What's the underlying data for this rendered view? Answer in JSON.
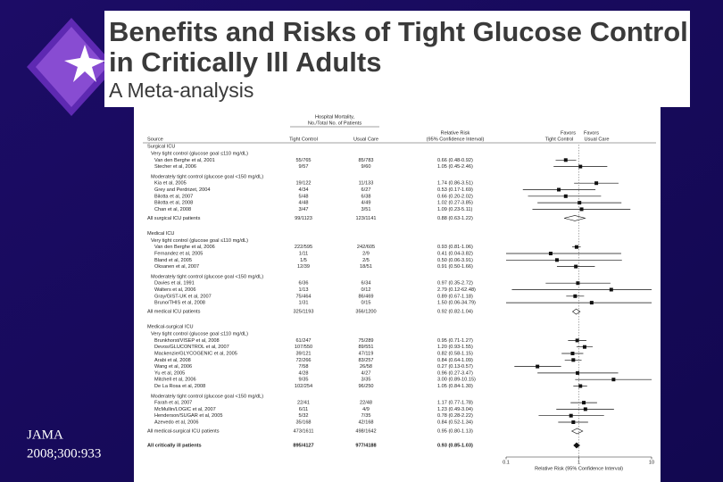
{
  "slide": {
    "title_lines": [
      "Benefits and Risks of Tight Glucose Control",
      "in Critically Ill Adults"
    ],
    "subtitle": "A Meta-analysis",
    "citation": [
      "JAMA",
      "2008;300:933"
    ]
  },
  "chart_data": {
    "type": "forest",
    "columns": {
      "source": "Source",
      "mortality": [
        "Hospital Mortality,",
        "No./Total No. of Patients"
      ],
      "tight": "Tight Control",
      "usual": "Usual Care",
      "rr": [
        "Relative Risk",
        "(95% Confidence Interval)"
      ],
      "favors_tight": [
        "Favors",
        "Tight Control"
      ],
      "favors_usual": [
        "Favors",
        "Usual Care"
      ]
    },
    "x_label": "Relative Risk (95% Confidence Interval)",
    "xlim": [
      0.1,
      10
    ],
    "xticks": [
      0.1,
      1,
      10
    ],
    "log_scale": true,
    "color": "#111111",
    "groups": [
      {
        "name": "Surgical ICU",
        "subgroups": [
          {
            "name": "Very tight control (glucose goal ≤110 mg/dL)",
            "studies": [
              {
                "source": "Van den Berghe et al, 2001",
                "tight": "55/765",
                "usual": "85/783",
                "rr_label": "0.66 (0.48-0.92)",
                "rr": 0.66,
                "ci": [
                  0.48,
                  0.92
                ]
              },
              {
                "source": "Stecher et al, 2006",
                "tight": "9/57",
                "usual": "9/60",
                "rr_label": "1.05 (0.45-2.46)",
                "rr": 1.05,
                "ci": [
                  0.45,
                  2.46
                ]
              }
            ]
          },
          {
            "name": "Moderately tight control (glucose goal <150 mg/dL)",
            "studies": [
              {
                "source": "Kia et al, 2005",
                "tight": "19/122",
                "usual": "11/133",
                "rr_label": "1.74 (0.86-3.51)",
                "rr": 1.74,
                "ci": [
                  0.86,
                  3.51
                ]
              },
              {
                "source": "Grey and Perdrizet, 2004",
                "tight": "4/34",
                "usual": "6/27",
                "rr_label": "0.53 (0.17-1.69)",
                "rr": 0.53,
                "ci": [
                  0.17,
                  1.69
                ]
              },
              {
                "source": "Bilotta et al, 2007",
                "tight": "5/48",
                "usual": "6/38",
                "rr_label": "0.66 (0.20-2.02)",
                "rr": 0.66,
                "ci": [
                  0.2,
                  2.02
                ]
              },
              {
                "source": "Bilotta et al, 2008",
                "tight": "4/48",
                "usual": "4/49",
                "rr_label": "1.02 (0.27-3.85)",
                "rr": 1.02,
                "ci": [
                  0.27,
                  3.85
                ]
              },
              {
                "source": "Chan et al, 2008",
                "tight": "3/47",
                "usual": "3/51",
                "rr_label": "1.09 (0.23-5.11)",
                "rr": 1.09,
                "ci": [
                  0.23,
                  5.11
                ]
              }
            ]
          }
        ],
        "total": {
          "source": "All surgical ICU patients",
          "tight": "99/1123",
          "usual": "123/1141",
          "rr_label": "0.88 (0.63-1.22)",
          "rr": 0.88,
          "ci": [
            0.63,
            1.22
          ]
        }
      },
      {
        "name": "Medical ICU",
        "subgroups": [
          {
            "name": "Very tight control (glucose goal ≤110 mg/dL)",
            "studies": [
              {
                "source": "Van den Berghe et al, 2006",
                "tight": "222/595",
                "usual": "242/605",
                "rr_label": "0.93 (0.81-1.06)",
                "rr": 0.93,
                "ci": [
                  0.81,
                  1.06
                ]
              },
              {
                "source": "Fernandez et al, 2005",
                "tight": "1/11",
                "usual": "2/9",
                "rr_label": "0.41 (0.04-3.82)",
                "rr": 0.41,
                "ci": [
                  0.04,
                  3.82
                ]
              },
              {
                "source": "Bland et al, 2005",
                "tight": "1/5",
                "usual": "2/5",
                "rr_label": "0.50 (0.06-3.91)",
                "rr": 0.5,
                "ci": [
                  0.06,
                  3.91
                ]
              },
              {
                "source": "Oksanen et al, 2007",
                "tight": "12/39",
                "usual": "18/51",
                "rr_label": "0.91 (0.50-1.66)",
                "rr": 0.91,
                "ci": [
                  0.5,
                  1.66
                ]
              }
            ]
          },
          {
            "name": "Moderately tight control (glucose goal <150 mg/dL)",
            "studies": [
              {
                "source": "Davies et al, 1991",
                "tight": "6/36",
                "usual": "6/34",
                "rr_label": "0.97 (0.35-2.72)",
                "rr": 0.97,
                "ci": [
                  0.35,
                  2.72
                ]
              },
              {
                "source": "Walters et al, 2006",
                "tight": "1/13",
                "usual": "0/12",
                "rr_label": "2.79 (0.12-62.48)",
                "rr": 2.79,
                "ci": [
                  0.12,
                  62.48
                ]
              },
              {
                "source": "Gray/GIST-UK et al, 2007",
                "tight": "75/464",
                "usual": "86/469",
                "rr_label": "0.89 (0.67-1.18)",
                "rr": 0.89,
                "ci": [
                  0.67,
                  1.18
                ]
              },
              {
                "source": "Bruno/THIS et al, 2008",
                "tight": "1/31",
                "usual": "0/15",
                "rr_label": "1.50 (0.06-34.79)",
                "rr": 1.5,
                "ci": [
                  0.06,
                  34.79
                ]
              }
            ]
          }
        ],
        "total": {
          "source": "All medical ICU patients",
          "tight": "325/1193",
          "usual": "356/1200",
          "rr_label": "0.92 (0.82-1.04)",
          "rr": 0.92,
          "ci": [
            0.82,
            1.04
          ]
        }
      },
      {
        "name": "Medical-surgical ICU",
        "subgroups": [
          {
            "name": "Very tight control (glucose goal ≤110 mg/dL)",
            "studies": [
              {
                "source": "Brunkhorst/VISEP et al, 2008",
                "tight": "61/247",
                "usual": "75/289",
                "rr_label": "0.95 (0.71-1.27)",
                "rr": 0.95,
                "ci": [
                  0.71,
                  1.27
                ]
              },
              {
                "source": "Devos/GLUCONTROL et al, 2007",
                "tight": "107/550",
                "usual": "89/551",
                "rr_label": "1.20 (0.93-1.55)",
                "rr": 1.2,
                "ci": [
                  0.93,
                  1.55
                ]
              },
              {
                "source": "Mackenzie/GLYCOGENIC et al, 2005",
                "tight": "39/121",
                "usual": "47/119",
                "rr_label": "0.82 (0.58-1.15)",
                "rr": 0.82,
                "ci": [
                  0.58,
                  1.15
                ]
              },
              {
                "source": "Arabi et al, 2008",
                "tight": "72/266",
                "usual": "83/257",
                "rr_label": "0.84 (0.64-1.09)",
                "rr": 0.84,
                "ci": [
                  0.64,
                  1.09
                ]
              },
              {
                "source": "Wang et al, 2006",
                "tight": "7/58",
                "usual": "26/58",
                "rr_label": "0.27 (0.13-0.57)",
                "rr": 0.27,
                "ci": [
                  0.13,
                  0.57
                ]
              },
              {
                "source": "Yu et al, 2005",
                "tight": "4/28",
                "usual": "4/27",
                "rr_label": "0.96 (0.27-3.47)",
                "rr": 0.96,
                "ci": [
                  0.27,
                  3.47
                ]
              },
              {
                "source": "Mitchell et al, 2006",
                "tight": "9/35",
                "usual": "3/35",
                "rr_label": "3.00 (0.89-10.15)",
                "rr": 3.0,
                "ci": [
                  0.89,
                  10.15
                ]
              },
              {
                "source": "De La Rosa et al, 2008",
                "tight": "102/254",
                "usual": "96/250",
                "rr_label": "1.05 (0.84-1.30)",
                "rr": 1.05,
                "ci": [
                  0.84,
                  1.3
                ]
              }
            ]
          },
          {
            "name": "Moderately tight control (glucose goal <150 mg/dL)",
            "studies": [
              {
                "source": "Farah et al, 2007",
                "tight": "22/41",
                "usual": "22/48",
                "rr_label": "1.17 (0.77-1.78)",
                "rr": 1.17,
                "ci": [
                  0.77,
                  1.78
                ]
              },
              {
                "source": "McMullin/LOGIC et al, 2007",
                "tight": "6/11",
                "usual": "4/9",
                "rr_label": "1.23 (0.49-3.04)",
                "rr": 1.23,
                "ci": [
                  0.49,
                  3.04
                ]
              },
              {
                "source": "Henderson/SUGAR et al, 2005",
                "tight": "5/32",
                "usual": "7/35",
                "rr_label": "0.78 (0.28-2.22)",
                "rr": 0.78,
                "ci": [
                  0.28,
                  2.22
                ]
              },
              {
                "source": "Azevedo et al, 2006",
                "tight": "35/168",
                "usual": "42/168",
                "rr_label": "0.84 (0.52-1.34)",
                "rr": 0.84,
                "ci": [
                  0.52,
                  1.34
                ]
              }
            ]
          }
        ],
        "total": {
          "source": "All medical-surgical ICU patients",
          "tight": "473/1611",
          "usual": "498/1642",
          "rr_label": "0.95 (0.80-1.13)",
          "rr": 0.95,
          "ci": [
            0.8,
            1.13
          ]
        }
      }
    ],
    "overall": {
      "source": "All critically ill patients",
      "tight": "895/4127",
      "usual": "977/4188",
      "rr_label": "0.93 (0.85-1.03)",
      "rr": 0.93,
      "ci": [
        0.85,
        1.03
      ]
    }
  }
}
